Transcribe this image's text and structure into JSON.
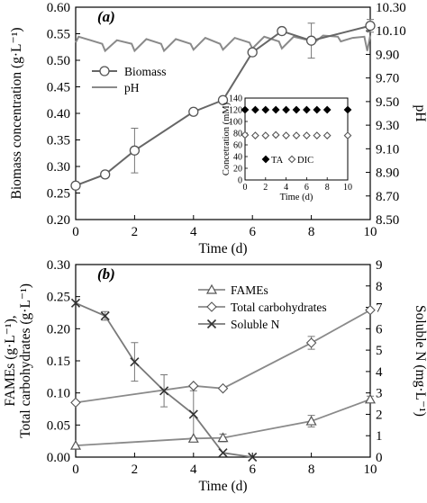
{
  "chart_data": [
    {
      "type": "line",
      "panel_label": "(a)",
      "xlabel": "Time (d)",
      "ylabel": "Biomass concentration (g·L⁻¹)",
      "ylabel_right": "pH",
      "xlim": [
        0,
        10
      ],
      "ylim": [
        0.2,
        0.6
      ],
      "ylim_right": [
        8.5,
        10.3
      ],
      "xticks": [
        "0",
        "2",
        "4",
        "6",
        "8",
        "10"
      ],
      "yticks": [
        "0.20",
        "0.25",
        "0.30",
        "0.35",
        "0.40",
        "0.45",
        "0.50",
        "0.55",
        "0.60"
      ],
      "yticks_right": [
        "8.50",
        "8.70",
        "8.90",
        "9.10",
        "9.30",
        "9.50",
        "9.70",
        "9.90",
        "10.10",
        "10.30"
      ],
      "legend_position": "upper-left",
      "series": [
        {
          "name": "Biomass",
          "axis": "left",
          "marker": "circle",
          "x": [
            0,
            1,
            2,
            4,
            5,
            6,
            7,
            8,
            10
          ],
          "y": [
            0.264,
            0.285,
            0.33,
            0.403,
            0.425,
            0.515,
            0.555,
            0.537,
            0.565
          ],
          "error": [
            0,
            0,
            0.042,
            0,
            0,
            0,
            0,
            0.033,
            0.012
          ]
        },
        {
          "name": "pH",
          "axis": "right",
          "marker": "none",
          "x": [
            0,
            0.1,
            0.5,
            0.9,
            1.0,
            1.4,
            1.9,
            2.0,
            2.4,
            2.9,
            3.0,
            3.4,
            3.9,
            4.0,
            4.4,
            4.9,
            5.0,
            5.4,
            5.9,
            6.0,
            6.4,
            6.9,
            7.0,
            7.4,
            7.9,
            8.0,
            8.4,
            8.9,
            9.0,
            9.4,
            9.8,
            9.9,
            10.0
          ],
          "y": [
            10.0,
            10.05,
            10.02,
            9.99,
            9.93,
            10.02,
            9.99,
            9.93,
            10.03,
            9.99,
            9.93,
            10.03,
            9.99,
            9.94,
            10.04,
            9.99,
            9.94,
            10.04,
            10.0,
            9.95,
            10.05,
            10.01,
            9.95,
            10.05,
            10.02,
            9.98,
            10.06,
            10.05,
            10.01,
            10.04,
            10.05,
            9.93,
            10.06
          ]
        }
      ],
      "inset": {
        "type": "scatter",
        "xlabel": "Time (d)",
        "ylabel": "Concetration (mM)",
        "xlim": [
          0,
          10
        ],
        "ylim": [
          0,
          140
        ],
        "xticks": [
          "0",
          "2",
          "4",
          "6",
          "8",
          "10"
        ],
        "yticks": [
          "0",
          "20",
          "40",
          "60",
          "80",
          "100",
          "120",
          "140"
        ],
        "legend_position": "bottom",
        "series": [
          {
            "name": "TA",
            "marker": "filled-diamond",
            "x": [
              0,
              1,
              2,
              3,
              4,
              5,
              6,
              7,
              8,
              10
            ],
            "y": [
              120,
              120,
              120,
              120,
              120,
              120,
              120,
              120,
              120,
              120
            ]
          },
          {
            "name": "DIC",
            "marker": "open-diamond",
            "x": [
              0,
              1,
              2,
              3,
              4,
              5,
              6,
              7,
              8,
              10
            ],
            "y": [
              77,
              76,
              76,
              77,
              76,
              76,
              76,
              76,
              76,
              76
            ]
          }
        ]
      }
    },
    {
      "type": "line",
      "panel_label": "(b)",
      "xlabel": "Time (d)",
      "ylabel_lines": [
        "FAMEs (g·L⁻¹),",
        "Total carbohydrates (g·L⁻¹)"
      ],
      "ylabel_right": "Soluble N (mg·L⁻¹)",
      "xlim": [
        0,
        10
      ],
      "ylim": [
        0,
        0.3
      ],
      "ylim_right": [
        0,
        9
      ],
      "xticks": [
        "0",
        "2",
        "4",
        "6",
        "8",
        "10"
      ],
      "yticks": [
        "0.00",
        "0.05",
        "0.10",
        "0.15",
        "0.20",
        "0.25",
        "0.30"
      ],
      "yticks_right": [
        "0",
        "1",
        "2",
        "3",
        "4",
        "5",
        "6",
        "7",
        "8",
        "9"
      ],
      "legend_position": "upper-right",
      "series": [
        {
          "name": "FAMEs",
          "axis": "left",
          "marker": "triangle",
          "x": [
            0,
            4,
            5,
            8,
            10
          ],
          "y": [
            0.018,
            0.029,
            0.03,
            0.056,
            0.09
          ],
          "error": [
            0,
            0,
            0.006,
            0.009,
            0.005
          ]
        },
        {
          "name": "Total carbohydrates",
          "axis": "left",
          "marker": "diamond",
          "x": [
            0,
            4,
            5,
            8,
            10
          ],
          "y": [
            0.085,
            0.111,
            0.107,
            0.178,
            0.229
          ],
          "error": [
            0,
            0,
            0,
            0.01,
            0
          ]
        },
        {
          "name": "Soluble N",
          "axis": "right",
          "marker": "x",
          "x": [
            0,
            1,
            2,
            3,
            4,
            5,
            6
          ],
          "y": [
            7.2,
            6.6,
            4.45,
            3.1,
            2.0,
            0.2,
            0
          ],
          "error": [
            0,
            0.2,
            0.9,
            0.75,
            1.1,
            0,
            0
          ]
        }
      ]
    }
  ]
}
